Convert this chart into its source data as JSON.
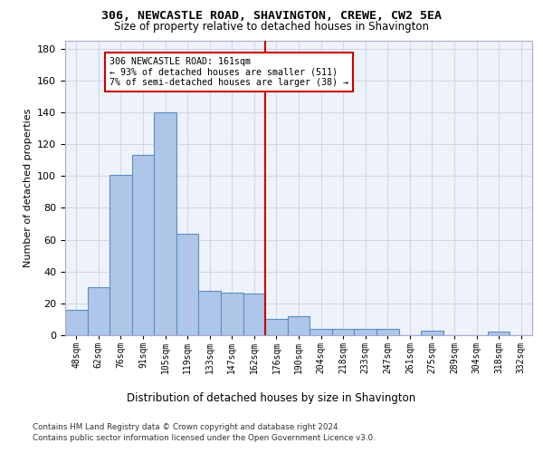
{
  "title1": "306, NEWCASTLE ROAD, SHAVINGTON, CREWE, CW2 5EA",
  "title2": "Size of property relative to detached houses in Shavington",
  "xlabel": "Distribution of detached houses by size in Shavington",
  "ylabel": "Number of detached properties",
  "bar_labels": [
    "48sqm",
    "62sqm",
    "76sqm",
    "91sqm",
    "105sqm",
    "119sqm",
    "133sqm",
    "147sqm",
    "162sqm",
    "176sqm",
    "190sqm",
    "204sqm",
    "218sqm",
    "233sqm",
    "247sqm",
    "261sqm",
    "275sqm",
    "289sqm",
    "304sqm",
    "318sqm",
    "332sqm"
  ],
  "bar_heights": [
    16,
    30,
    101,
    113,
    140,
    64,
    28,
    27,
    26,
    10,
    12,
    4,
    4,
    4,
    4,
    0,
    3,
    0,
    0,
    2,
    0
  ],
  "bar_color": "#aec6e8",
  "bar_edge_color": "#5a8fc0",
  "vline_color": "#cc0000",
  "annotation_text": "306 NEWCASTLE ROAD: 161sqm\n← 93% of detached houses are smaller (511)\n7% of semi-detached houses are larger (38) →",
  "annotation_box_color": "#ffffff",
  "annotation_border_color": "#cc0000",
  "ylim": [
    0,
    185
  ],
  "yticks": [
    0,
    20,
    40,
    60,
    80,
    100,
    120,
    140,
    160,
    180
  ],
  "grid_color": "#d0d8e8",
  "background_color": "#eef2fa",
  "footer1": "Contains HM Land Registry data © Crown copyright and database right 2024.",
  "footer2": "Contains public sector information licensed under the Open Government Licence v3.0."
}
